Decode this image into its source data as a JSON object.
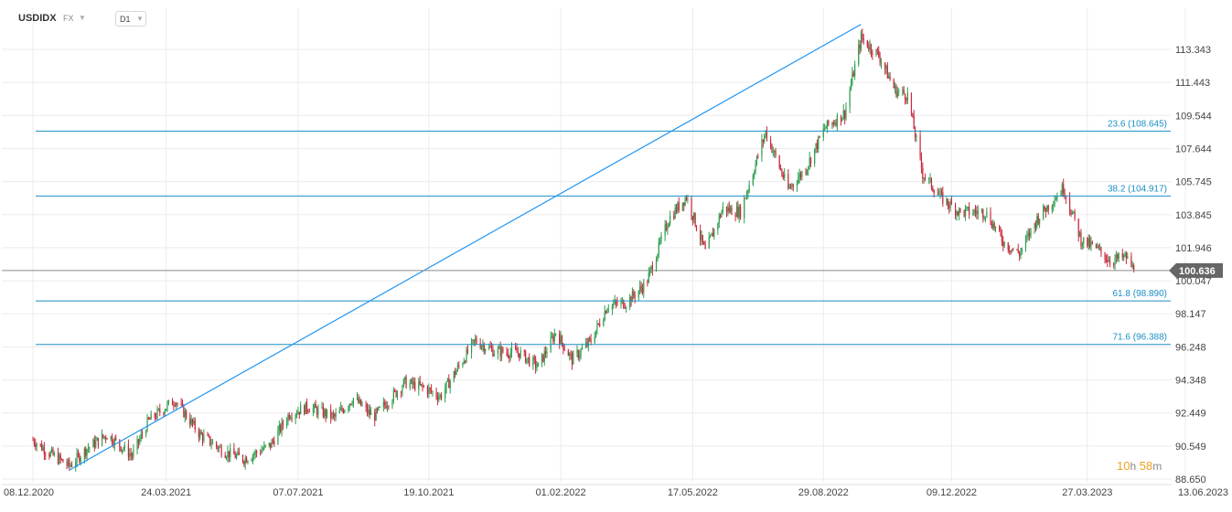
{
  "header": {
    "symbol": "USDIDX",
    "market": "FX",
    "timeframe": "D1"
  },
  "countdown": {
    "hours": "10",
    "hours_unit": "h",
    "minutes": "58",
    "minutes_unit": "m"
  },
  "colors": {
    "up": "#2e9e4f",
    "down": "#c8283c",
    "fib_line": "#1a8fc4",
    "fib_text": "#1a8fc4",
    "trend_line": "#2196f3",
    "grid": "#ececec",
    "axis_text": "#444444",
    "current_price_line": "#8a8a8a",
    "current_price_badge": "#666666"
  },
  "chart_data": {
    "type": "candlestick",
    "y_axis": {
      "ticks": [
        88.65,
        90.549,
        92.449,
        94.348,
        96.248,
        98.147,
        100.047,
        101.946,
        103.845,
        105.745,
        107.644,
        109.544,
        111.443,
        113.343
      ],
      "tick_labels": [
        "88.650",
        "90.549",
        "92.449",
        "94.348",
        "96.248",
        "98.147",
        "100.047",
        "101.946",
        "103.845",
        "105.745",
        "107.644",
        "109.544",
        "111.443",
        "113.343"
      ],
      "range": [
        88.6,
        114.9
      ]
    },
    "x_axis": {
      "labels": [
        "08.12.2020",
        "24.03.2021",
        "07.07.2021",
        "19.10.2021",
        "01.02.2022",
        "17.05.2022",
        "29.08.2022",
        "09.12.2022",
        "27.03.2023",
        "13.06.2023"
      ],
      "range": [
        "2020-12-08",
        "2023-06-13"
      ]
    },
    "current_price": {
      "value": 100.636,
      "label": "100.636"
    },
    "fibonacci_levels": [
      {
        "label": "23.6 (108.645)",
        "value": 108.645
      },
      {
        "label": "38.2 (104.917)",
        "value": 104.917
      },
      {
        "label": "61.8 (98.890)",
        "value": 98.89
      },
      {
        "label": "71.6 (96.388)",
        "value": 96.388
      }
    ],
    "trend_line": {
      "from": {
        "date": "2021-01-06",
        "value": 89.17
      },
      "to": {
        "date": "2022-09-28",
        "value": 114.78
      }
    },
    "price_path": [
      [
        "2020-12-08",
        90.9
      ],
      [
        "2020-12-20",
        90.2
      ],
      [
        "2021-01-06",
        89.4
      ],
      [
        "2021-01-20",
        90.4
      ],
      [
        "2021-02-05",
        91.2
      ],
      [
        "2021-02-25",
        90.0
      ],
      [
        "2021-03-10",
        92.0
      ],
      [
        "2021-03-31",
        93.2
      ],
      [
        "2021-04-20",
        91.2
      ],
      [
        "2021-05-10",
        90.2
      ],
      [
        "2021-05-25",
        89.8
      ],
      [
        "2021-06-15",
        90.6
      ],
      [
        "2021-06-30",
        92.4
      ],
      [
        "2021-07-15",
        92.8
      ],
      [
        "2021-08-05",
        92.2
      ],
      [
        "2021-08-20",
        93.3
      ],
      [
        "2021-09-05",
        92.2
      ],
      [
        "2021-09-30",
        94.2
      ],
      [
        "2021-10-15",
        93.9
      ],
      [
        "2021-10-28",
        93.4
      ],
      [
        "2021-11-10",
        94.9
      ],
      [
        "2021-11-25",
        96.6
      ],
      [
        "2021-12-10",
        96.0
      ],
      [
        "2021-12-30",
        95.9
      ],
      [
        "2022-01-14",
        95.1
      ],
      [
        "2022-01-28",
        97.1
      ],
      [
        "2022-02-10",
        95.5
      ],
      [
        "2022-02-25",
        96.6
      ],
      [
        "2022-03-10",
        98.6
      ],
      [
        "2022-03-25",
        98.8
      ],
      [
        "2022-04-10",
        99.9
      ],
      [
        "2022-04-28",
        103.6
      ],
      [
        "2022-05-12",
        104.9
      ],
      [
        "2022-05-27",
        101.7
      ],
      [
        "2022-06-10",
        104.2
      ],
      [
        "2022-06-24",
        104.0
      ],
      [
        "2022-07-14",
        108.6
      ],
      [
        "2022-08-01",
        105.3
      ],
      [
        "2022-08-15",
        106.5
      ],
      [
        "2022-08-30",
        108.8
      ],
      [
        "2022-09-15",
        109.7
      ],
      [
        "2022-09-28",
        114.0
      ],
      [
        "2022-10-12",
        113.0
      ],
      [
        "2022-10-25",
        111.0
      ],
      [
        "2022-11-04",
        110.7
      ],
      [
        "2022-11-16",
        106.2
      ],
      [
        "2022-12-01",
        104.8
      ],
      [
        "2022-12-15",
        104.0
      ],
      [
        "2023-01-05",
        104.0
      ],
      [
        "2023-01-20",
        102.2
      ],
      [
        "2023-02-01",
        101.6
      ],
      [
        "2023-02-15",
        103.6
      ],
      [
        "2023-03-08",
        105.4
      ],
      [
        "2023-03-22",
        102.4
      ],
      [
        "2023-04-05",
        101.8
      ],
      [
        "2023-04-14",
        101.2
      ],
      [
        "2023-04-27",
        101.4
      ],
      [
        "2023-05-03",
        100.64
      ]
    ]
  }
}
